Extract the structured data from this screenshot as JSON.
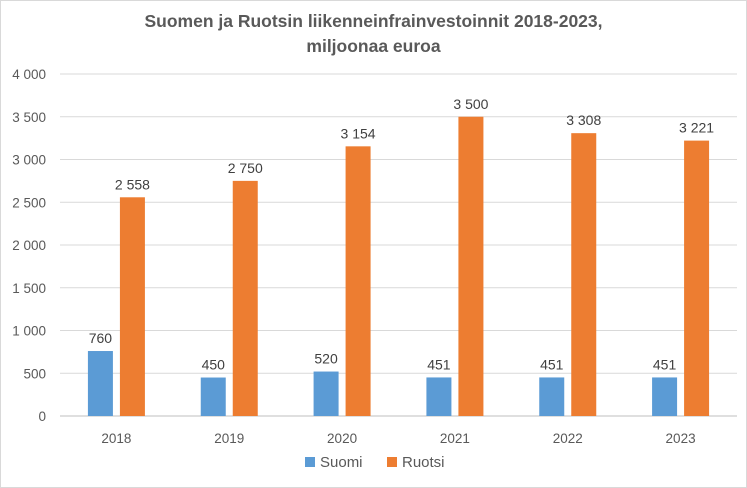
{
  "chart_data": {
    "type": "bar",
    "title": "Suomen ja Ruotsin liikenneinfrainvestoinnit 2018-2023,",
    "subtitle": "miljoonaa euroa",
    "categories": [
      "2018",
      "2019",
      "2020",
      "2021",
      "2022",
      "2023"
    ],
    "series": [
      {
        "name": "Suomi",
        "color": "#5b9bd5",
        "values": [
          760,
          450,
          520,
          451,
          451,
          451
        ],
        "labels": [
          "760",
          "450",
          "520",
          "451",
          "451",
          "451"
        ]
      },
      {
        "name": "Ruotsi",
        "color": "#ed7d31",
        "values": [
          2558,
          2750,
          3154,
          3500,
          3308,
          3221
        ],
        "labels": [
          "2 558",
          "2 750",
          "3 154",
          "3 500",
          "3 308",
          "3 221"
        ]
      }
    ],
    "ylim": [
      0,
      4000
    ],
    "yticks": [
      0,
      500,
      1000,
      1500,
      2000,
      2500,
      3000,
      3500,
      4000
    ],
    "ytick_labels": [
      "0",
      "500",
      "1 000",
      "1 500",
      "2 000",
      "2 500",
      "3 000",
      "3 500",
      "4 000"
    ],
    "grid": true,
    "legend": "bottom"
  }
}
